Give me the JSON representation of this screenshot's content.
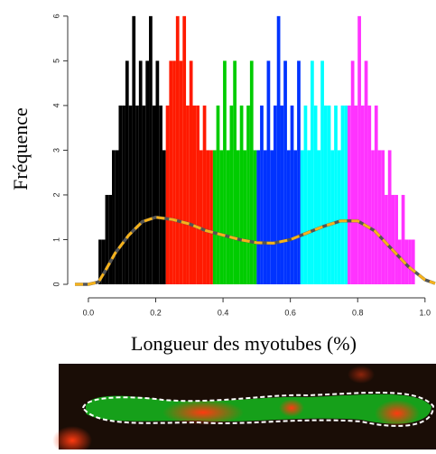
{
  "chart_data": {
    "type": "histogram",
    "xlabel": "Longueur des myotubes (%)",
    "ylabel": "Fréquence",
    "xlim": [
      -0.04,
      1.03
    ],
    "ylim": [
      0,
      6.3
    ],
    "xticks": [
      {
        "value": 0,
        "label": "0.0"
      },
      0.2,
      0.4,
      0.6,
      0.8,
      {
        "value": 1,
        "label": "1.0"
      }
    ],
    "yticks": [
      0,
      1,
      2,
      3,
      4,
      5,
      6
    ],
    "series": [
      {
        "color": "#000000",
        "bins": [
          0.03,
          0.04,
          0.05,
          0.06,
          0.07,
          0.08,
          0.09,
          0.1,
          0.11,
          0.12,
          0.13,
          0.14,
          0.15,
          0.16,
          0.17,
          0.18,
          0.19,
          0.2,
          0.21,
          0.22,
          0.23
        ],
        "values": [
          1,
          1,
          2,
          2,
          3,
          3,
          4,
          4,
          5,
          4,
          6,
          4,
          5,
          4,
          5,
          6,
          4,
          5,
          4,
          3
        ]
      },
      {
        "color": "#ff1a00",
        "bins": [
          0.23,
          0.24,
          0.25,
          0.26,
          0.27,
          0.28,
          0.29,
          0.3,
          0.31,
          0.32,
          0.33,
          0.34,
          0.35,
          0.36,
          0.37
        ],
        "values": [
          4,
          5,
          5,
          6,
          5,
          6,
          4,
          5,
          4,
          4,
          3,
          4,
          3,
          3
        ]
      },
      {
        "color": "#00cc00",
        "bins": [
          0.37,
          0.38,
          0.39,
          0.4,
          0.41,
          0.42,
          0.43,
          0.44,
          0.45,
          0.46,
          0.47,
          0.48,
          0.49,
          0.5
        ],
        "values": [
          3,
          4,
          3,
          5,
          3,
          4,
          5,
          3,
          4,
          3,
          4,
          5,
          3
        ]
      },
      {
        "color": "#0033ff",
        "bins": [
          0.5,
          0.51,
          0.52,
          0.53,
          0.54,
          0.55,
          0.56,
          0.57,
          0.58,
          0.59,
          0.6,
          0.61,
          0.62,
          0.63
        ],
        "values": [
          3,
          4,
          3,
          5,
          3,
          4,
          6,
          4,
          5,
          3,
          4,
          3,
          5
        ]
      },
      {
        "color": "#00ffff",
        "bins": [
          0.63,
          0.64,
          0.65,
          0.66,
          0.67,
          0.68,
          0.69,
          0.7,
          0.71,
          0.72,
          0.73,
          0.74,
          0.75,
          0.76,
          0.77
        ],
        "values": [
          3,
          4,
          3,
          5,
          4,
          3,
          5,
          4,
          4,
          3,
          4,
          3,
          4,
          4
        ]
      },
      {
        "color": "#ff33ff",
        "bins": [
          0.77,
          0.78,
          0.79,
          0.8,
          0.81,
          0.82,
          0.83,
          0.84,
          0.85,
          0.86,
          0.87,
          0.88,
          0.89,
          0.9,
          0.91,
          0.92,
          0.93,
          0.94,
          0.95,
          0.96,
          0.97
        ],
        "values": [
          4,
          5,
          4,
          6,
          4,
          5,
          4,
          3,
          4,
          3,
          3,
          2,
          3,
          2,
          2,
          1,
          2,
          1,
          1,
          1
        ]
      }
    ],
    "curve": {
      "color": "#f5b21b",
      "x": [
        -0.04,
        0.0,
        0.03,
        0.05,
        0.08,
        0.12,
        0.16,
        0.2,
        0.25,
        0.3,
        0.35,
        0.4,
        0.45,
        0.5,
        0.55,
        0.6,
        0.65,
        0.7,
        0.75,
        0.8,
        0.85,
        0.9,
        0.95,
        1.0,
        1.03
      ],
      "values": [
        0,
        0,
        0.05,
        0.3,
        0.7,
        1.1,
        1.4,
        1.5,
        1.45,
        1.35,
        1.2,
        1.1,
        1.0,
        0.93,
        0.92,
        1.0,
        1.15,
        1.3,
        1.42,
        1.42,
        1.2,
        0.8,
        0.4,
        0.1,
        0.02
      ]
    }
  }
}
